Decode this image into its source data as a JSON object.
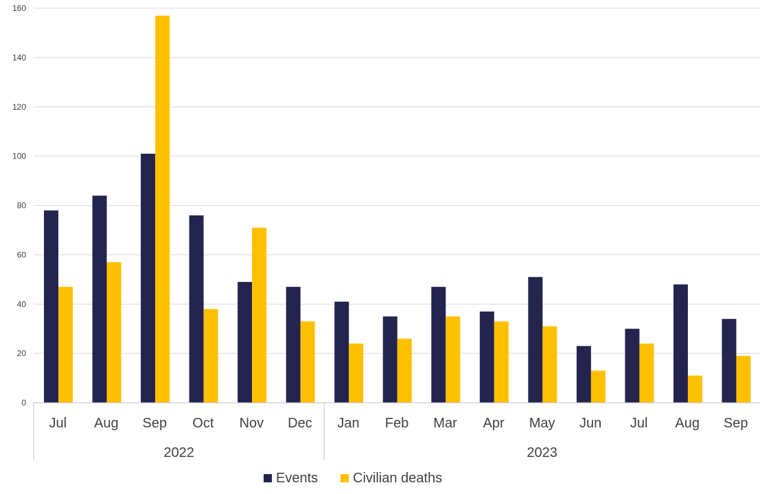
{
  "chart_data": {
    "type": "bar",
    "title": "",
    "xlabel": "",
    "ylabel": "",
    "categories": [
      "Jul",
      "Aug",
      "Sep",
      "Oct",
      "Nov",
      "Dec",
      "Jan",
      "Feb",
      "Mar",
      "Apr",
      "May",
      "Jun",
      "Jul",
      "Aug",
      "Sep"
    ],
    "groups": [
      {
        "label": "2022",
        "count": 6
      },
      {
        "label": "2023",
        "count": 9
      }
    ],
    "series": [
      {
        "name": "Events",
        "color": "#24244f",
        "values": [
          78,
          84,
          101,
          76,
          49,
          47,
          41,
          35,
          47,
          37,
          51,
          23,
          30,
          48,
          34
        ]
      },
      {
        "name": "Civilian deaths",
        "color": "#ffc000",
        "values": [
          47,
          57,
          157,
          38,
          71,
          33,
          24,
          26,
          35,
          33,
          31,
          13,
          24,
          11,
          19
        ]
      }
    ],
    "ylim": [
      0,
      160
    ],
    "yticks": [
      0,
      20,
      40,
      60,
      80,
      100,
      120,
      140,
      160
    ],
    "grid": true,
    "legend_position": "bottom-center"
  }
}
